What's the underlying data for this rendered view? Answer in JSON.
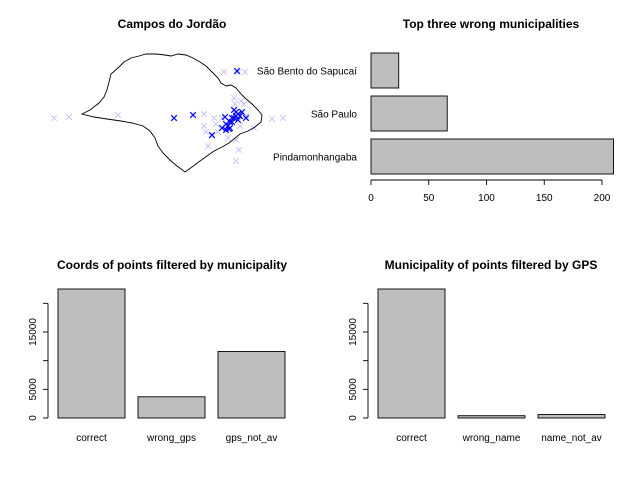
{
  "chart_data": [
    {
      "type": "scatter",
      "title": "Campos do Jordão",
      "marker": "x",
      "series": [
        {
          "color": "#0000ff",
          "opacity": "strong"
        },
        {
          "color": "#0000ff",
          "opacity": "faint"
        }
      ]
    },
    {
      "type": "bar",
      "orientation": "horizontal",
      "title": "Top three wrong municipalities",
      "categories": [
        "São Bento do Sapucaí",
        "São Paulo",
        "Pindamonhangaba"
      ],
      "values": [
        24,
        66,
        210
      ],
      "xlim": [
        0,
        210
      ],
      "xticks": [
        "0",
        "50",
        "100",
        "150",
        "200"
      ],
      "bar_color": "#bebebe"
    },
    {
      "type": "bar",
      "title": "Coords of points filtered by municipality",
      "categories": [
        "correct",
        "wrong_gps",
        "gps_not_av"
      ],
      "values": [
        22500,
        3700,
        11600
      ],
      "ylim": [
        0,
        22500
      ],
      "yticks": [
        "0",
        "5000",
        "15000"
      ],
      "bar_color": "#bebebe"
    },
    {
      "type": "bar",
      "title": "Municipality of points filtered by GPS",
      "categories": [
        "correct",
        "wrong_name",
        "name_not_av"
      ],
      "values": [
        22500,
        400,
        600
      ],
      "ylim": [
        0,
        22500
      ],
      "yticks": [
        "0",
        "5000",
        "15000"
      ],
      "bar_color": "#bebebe"
    }
  ]
}
